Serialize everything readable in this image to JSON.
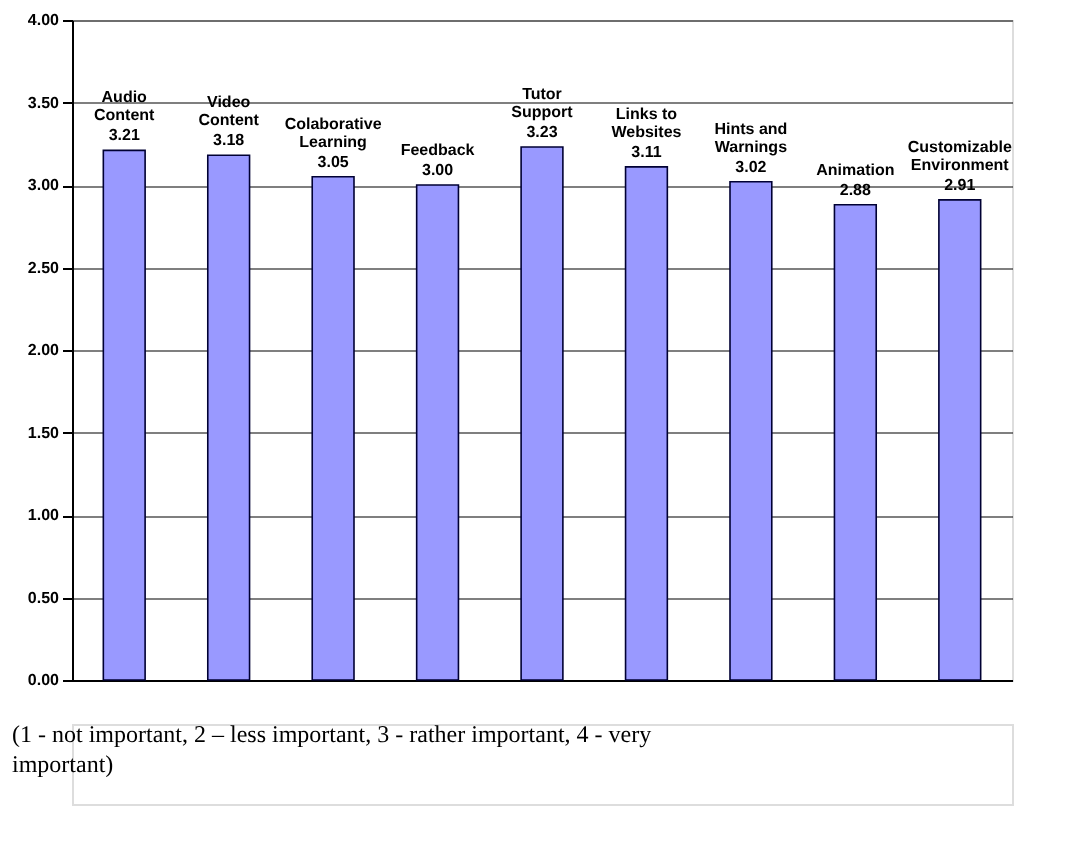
{
  "chart_data": {
    "type": "bar",
    "categories": [
      "Audio\nContent",
      "Video\nContent",
      "Colaborative\nLearning",
      "Feedback",
      "Tutor\nSupport",
      "Links to\nWebsites",
      "Hints and\nWarnings",
      "Animation",
      "Customizable\nEnvironment"
    ],
    "values": [
      3.21,
      3.18,
      3.05,
      3.0,
      3.23,
      3.11,
      3.02,
      2.88,
      2.91
    ],
    "value_labels": [
      "3.21",
      "3.18",
      "3.05",
      "3.00",
      "3.23",
      "3.11",
      "3.02",
      "2.88",
      "2.91"
    ],
    "color": "#9999ff",
    "ylim": [
      0,
      4
    ],
    "yticks": [
      {
        "value": 0,
        "label": "0.00"
      },
      {
        "value": 0.5,
        "label": "0.50"
      },
      {
        "value": 1,
        "label": "1.00"
      },
      {
        "value": 1.5,
        "label": "1.50"
      },
      {
        "value": 2,
        "label": "2.00"
      },
      {
        "value": 2.5,
        "label": "2.50"
      },
      {
        "value": 3,
        "label": "3.00"
      },
      {
        "value": 3.5,
        "label": "3.50"
      },
      {
        "value": 4,
        "label": "4.00"
      }
    ],
    "grid": "y",
    "legend": false,
    "annotations": [
      "(1 - not important, 2 – less important, 3 - rather important, 4 - very important)"
    ]
  }
}
